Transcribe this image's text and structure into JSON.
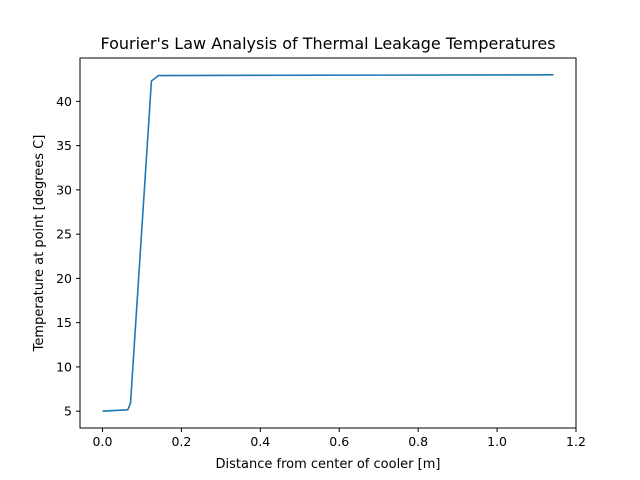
{
  "chart_data": {
    "type": "line",
    "title": "Fourier's Law Analysis of Thermal Leakage Temperatures",
    "xlabel": "Distance from center of cooler [m]",
    "ylabel": "Temperature at point [degrees C]",
    "xlim": [
      -0.057,
      1.2
    ],
    "ylim": [
      3.1,
      44.9
    ],
    "xticks": [
      0.0,
      0.2,
      0.4,
      0.6,
      0.8,
      1.0,
      1.2
    ],
    "xtick_labels": [
      "0.0",
      "0.2",
      "0.4",
      "0.6",
      "0.8",
      "1.0",
      "1.2"
    ],
    "yticks": [
      5,
      10,
      15,
      20,
      25,
      30,
      35,
      40
    ],
    "ytick_labels": [
      "5",
      "10",
      "15",
      "20",
      "25",
      "30",
      "35",
      "40"
    ],
    "grid": false,
    "legend": "none",
    "series": [
      {
        "color": "#1f77b4",
        "x": [
          0.0,
          0.064,
          0.071,
          0.124,
          0.142,
          1.143
        ],
        "y": [
          5.0,
          5.15,
          5.9,
          42.3,
          42.92,
          43.0
        ]
      }
    ]
  }
}
